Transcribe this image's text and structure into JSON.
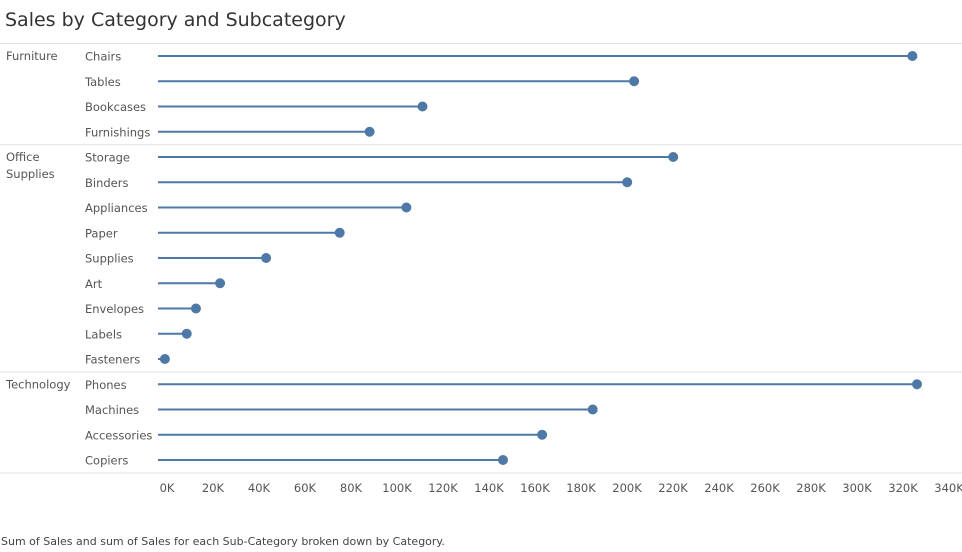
{
  "title": "Sales by Category and Subcategory",
  "caption": "Sum of Sales and sum of Sales for each Sub-Category broken down by Category.",
  "colors": {
    "series": "#4e79a7",
    "divider": "#e0e0e0",
    "text": "#555555"
  },
  "chart_data": {
    "type": "lollipop",
    "title": "Sales by Category and Subcategory",
    "xlabel": "",
    "ylabel": "",
    "xlim": [
      0,
      340000
    ],
    "x_ticks": [
      0,
      20000,
      40000,
      60000,
      80000,
      100000,
      120000,
      140000,
      160000,
      180000,
      200000,
      220000,
      240000,
      260000,
      280000,
      300000,
      320000,
      340000
    ],
    "x_tick_labels": [
      "0K",
      "20K",
      "40K",
      "60K",
      "80K",
      "100K",
      "120K",
      "140K",
      "160K",
      "180K",
      "200K",
      "220K",
      "240K",
      "260K",
      "280K",
      "300K",
      "320K",
      "340K"
    ],
    "grid": false,
    "groups": [
      {
        "category": "Furniture",
        "category_lines": [
          "Furniture"
        ],
        "items": [
          {
            "label": "Chairs",
            "value": 328000
          },
          {
            "label": "Tables",
            "value": 207000
          },
          {
            "label": "Bookcases",
            "value": 115000
          },
          {
            "label": "Furnishings",
            "value": 92000
          }
        ]
      },
      {
        "category": "Office Supplies",
        "category_lines": [
          "Office",
          "Supplies"
        ],
        "items": [
          {
            "label": "Storage",
            "value": 224000
          },
          {
            "label": "Binders",
            "value": 204000
          },
          {
            "label": "Appliances",
            "value": 108000
          },
          {
            "label": "Paper",
            "value": 79000
          },
          {
            "label": "Supplies",
            "value": 47000
          },
          {
            "label": "Art",
            "value": 27000
          },
          {
            "label": "Envelopes",
            "value": 16500
          },
          {
            "label": "Labels",
            "value": 12500
          },
          {
            "label": "Fasteners",
            "value": 3000
          }
        ]
      },
      {
        "category": "Technology",
        "category_lines": [
          "Technology"
        ],
        "items": [
          {
            "label": "Phones",
            "value": 330000
          },
          {
            "label": "Machines",
            "value": 189000
          },
          {
            "label": "Accessories",
            "value": 167000
          },
          {
            "label": "Copiers",
            "value": 150000
          }
        ]
      }
    ]
  }
}
